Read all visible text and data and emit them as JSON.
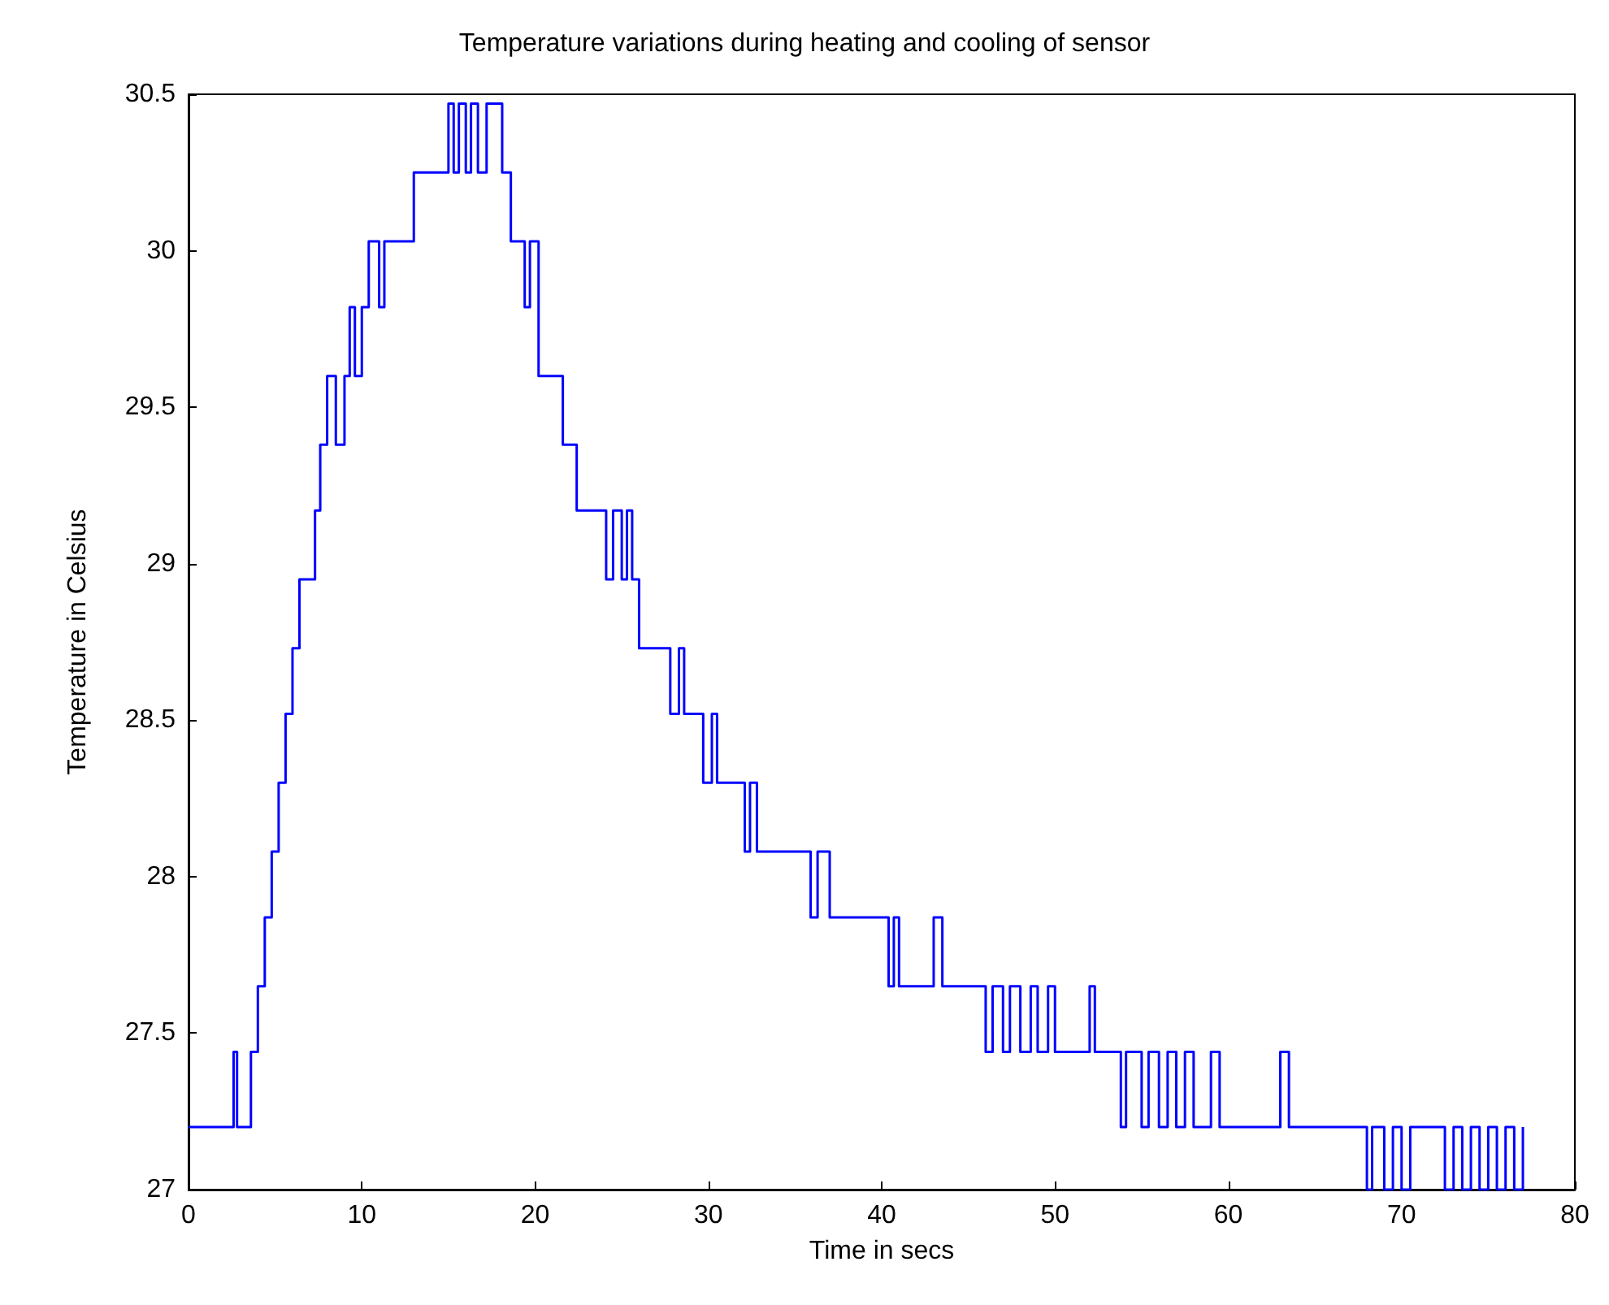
{
  "chart_data": {
    "type": "step",
    "title": "Temperature variations during heating and cooling of sensor",
    "xlabel": "Time in secs",
    "ylabel": "Temperature in Celsius",
    "x": [
      0,
      2.6,
      2.8,
      3.6,
      4,
      4.4,
      4.8,
      5.2,
      5.6,
      6,
      6.4,
      7.3,
      7.6,
      8,
      8.5,
      9,
      9.3,
      9.6,
      10,
      10.4,
      11,
      11.3,
      13,
      15,
      15.3,
      15.6,
      16,
      16.3,
      16.7,
      17.2,
      18.1,
      18.6,
      19.4,
      19.7,
      20.2,
      21.6,
      22.4,
      23.2,
      24.1,
      24.5,
      25,
      25.3,
      25.6,
      26,
      27.8,
      28.3,
      28.6,
      29.7,
      30.2,
      30.5,
      32.1,
      32.4,
      32.8,
      33,
      35.9,
      36.3,
      37,
      37.5,
      40.4,
      40.7,
      41,
      43,
      43.5,
      46,
      46.4,
      47,
      47.4,
      48,
      48.6,
      49,
      49.6,
      50,
      52,
      52.3,
      53.8,
      54.1,
      55,
      55.4,
      56,
      56.5,
      57,
      57.5,
      58,
      59,
      59.5,
      61,
      63,
      63.5,
      68,
      68.3,
      69,
      69.5,
      70,
      70.5,
      72.5,
      73,
      73.5,
      74,
      74.5,
      75,
      75.5,
      76,
      76.5,
      77
    ],
    "series": [
      {
        "color": "#0000ff",
        "values": [
          27.2,
          27.44,
          27.2,
          27.44,
          27.65,
          27.87,
          28.08,
          28.3,
          28.52,
          28.73,
          28.95,
          29.17,
          29.38,
          29.6,
          29.38,
          29.6,
          29.82,
          29.6,
          29.82,
          30.03,
          29.82,
          30.03,
          30.25,
          30.47,
          30.25,
          30.47,
          30.25,
          30.47,
          30.25,
          30.47,
          30.25,
          30.03,
          29.82,
          30.03,
          29.6,
          29.38,
          29.17,
          29.17,
          28.95,
          29.17,
          28.95,
          29.17,
          28.95,
          28.73,
          28.52,
          28.73,
          28.52,
          28.3,
          28.52,
          28.3,
          28.08,
          28.3,
          28.08,
          28.08,
          27.87,
          28.08,
          27.87,
          27.87,
          27.65,
          27.87,
          27.65,
          27.87,
          27.65,
          27.44,
          27.65,
          27.44,
          27.65,
          27.44,
          27.65,
          27.44,
          27.65,
          27.44,
          27.65,
          27.44,
          27.2,
          27.44,
          27.2,
          27.44,
          27.2,
          27.44,
          27.2,
          27.44,
          27.2,
          27.44,
          27.2,
          27.2,
          27.44,
          27.2,
          27,
          27.2,
          27,
          27.2,
          27,
          27.2,
          27,
          27.2,
          27,
          27.2,
          27,
          27.2,
          27,
          27.2,
          27,
          27.2
        ]
      }
    ],
    "xlim": [
      0,
      80
    ],
    "xticks": [
      0,
      10,
      20,
      30,
      40,
      50,
      60,
      70,
      80
    ],
    "ylim": [
      27,
      30.5
    ],
    "yticks": [
      27,
      27.5,
      28,
      28.5,
      29,
      29.5,
      30,
      30.5
    ],
    "grid": false,
    "marker": "none",
    "line_style": "solid"
  }
}
